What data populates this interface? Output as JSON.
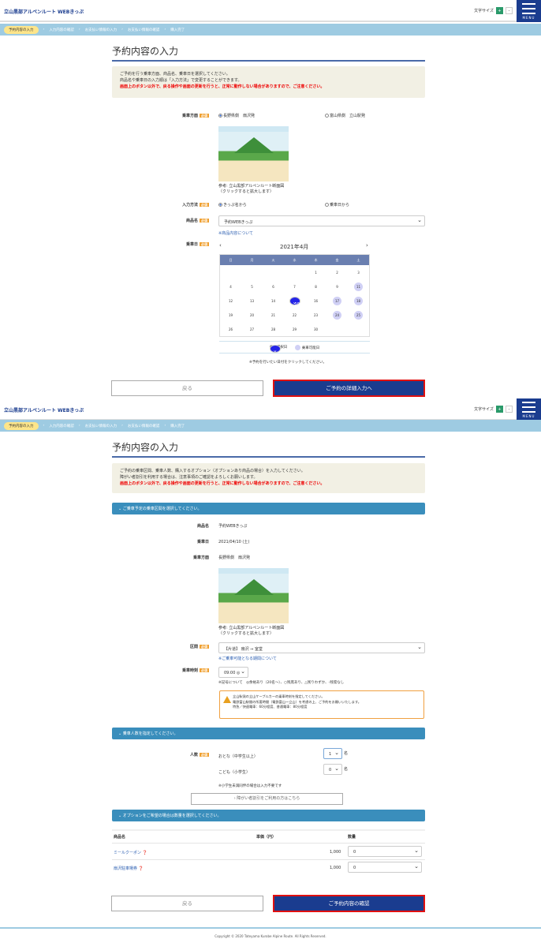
{
  "header": {
    "logo": "立山黒部アルペンルート WEBきっぷ",
    "font_size_label": "文字サイズ",
    "font_large": "+",
    "font_small": "-",
    "menu_label": "MENU"
  },
  "breadcrumb": [
    "予約内容の入力",
    "入力内容の確認",
    "お支払い情報の入力",
    "お支払い情報の確認",
    "購入完了"
  ],
  "page1": {
    "title": "予約内容の入力",
    "info": [
      "ご予約を行う乗車方面、商品名、乗車日を選択してください。",
      "商品名や乗車日の入力順は「入力方法」で変更することができます。"
    ],
    "warning": "画面上のボタン以外で、戻る操作や画面の更新を行うと、正常に動作しない場合がありますので、ご注意ください。",
    "required": "必須",
    "direction_label": "乗車方面",
    "direction_opt1": "長野県側　扇沢発",
    "direction_opt2": "富山県側　立山駅発",
    "map_caption1": "参考: 立山黒部アルペンルート断面図",
    "map_caption2": "（クリックすると拡大します）",
    "input_method_label": "入力方法",
    "method_opt1": "きっぷ名から",
    "method_opt2": "乗車日から",
    "product_label": "商品名",
    "product_value": "予約WEBきっぷ",
    "product_link": "※商品内容について",
    "date_label": "乗車日",
    "calendar": {
      "month": "2021年4月",
      "prev": "‹",
      "next": "›",
      "weekdays": [
        "日",
        "月",
        "火",
        "水",
        "木",
        "金",
        "土"
      ],
      "first_weekday": 4,
      "days": 30,
      "selected": 10,
      "available": [
        11,
        17,
        18,
        24,
        25
      ]
    },
    "legend_selected": "乗車選択日",
    "legend_available": "乗車可能日",
    "calendar_note": "※予約を行いたい日付をクリックしてください。",
    "back": "戻る",
    "next": "ご予約の詳細入力へ"
  },
  "page2": {
    "title": "予約内容の入力",
    "info": [
      "ご予約の乗車区間、乗車人数、購入するオプション（オプションあり商品の場合）を入力してください。",
      "障がい者割引を利用する場合は、注意事項のご確認をよろしくお願いします。"
    ],
    "warning": "画面上のボタン以外で、戻る操作や画面の更新を行うと、正常に動作しない場合がありますので、ご注意ください。",
    "section1": "ご乗車予定の乗車区間を選択してください。",
    "product_label": "商品名",
    "product_value": "予約WEBきっぷ",
    "date_label": "乗車日",
    "date_value": "2021/04/10 (土)",
    "direction_label": "乗車方面",
    "direction_value": "長野県側　扇沢発",
    "map_caption1": "参考: 立山黒部アルペンルート断面図",
    "map_caption2": "（クリックすると拡大します）",
    "section_label": "区間",
    "section_value": "【片道】 扇沢 ⇒ 室堂",
    "section_link": "※ご乗車可能となる期間について",
    "time_label": "乗車時刻",
    "time_value": "09:00 ◎",
    "time_note": "※記号について　◎余裕あり（20名～）、○残席あり、△残りわずか、-残席なし",
    "notice": [
      "立山駅発の立山ケーブルカーの乗車時刻を指定してください。",
      "電鉄富山駅間の所要時間（電鉄富山～立山）を考慮の上、ご予約をお願いいたします。",
      "特急／快速電車：60分程度、普通電車：80分程度"
    ],
    "section2": "乗車人数を指定してください。",
    "people_label": "人数",
    "adult_label": "おとな（中学生以上）",
    "adult_value": "1",
    "child_label": "こども（小学生）",
    "child_value": "0",
    "unit": "名",
    "people_note": "※小学生未満同伴の場合は入力不要です",
    "disability_button": "› 障がい者割引をご利用の方はこちら",
    "section3": "オプションをご希望の場合は数量を選択してください。",
    "table_headers": [
      "商品名",
      "単価（円）",
      "数量"
    ],
    "options": [
      {
        "name": "ミールクーポン",
        "price": "1,000",
        "qty": "0"
      },
      {
        "name": "扇沢駐車場券",
        "price": "1,000",
        "qty": "0"
      }
    ],
    "back": "戻る",
    "next": "ご予約内容の確認"
  },
  "footer": "Copyright © 2020 Tateyama Kurobe Alpine Route. All Rights Reserved.",
  "colors": {
    "brand": "#1a3c8f",
    "section": "#3a8ebc",
    "warning": "#e00000",
    "selected_day": "#2424e8",
    "available_day": "#d0d0f5"
  }
}
